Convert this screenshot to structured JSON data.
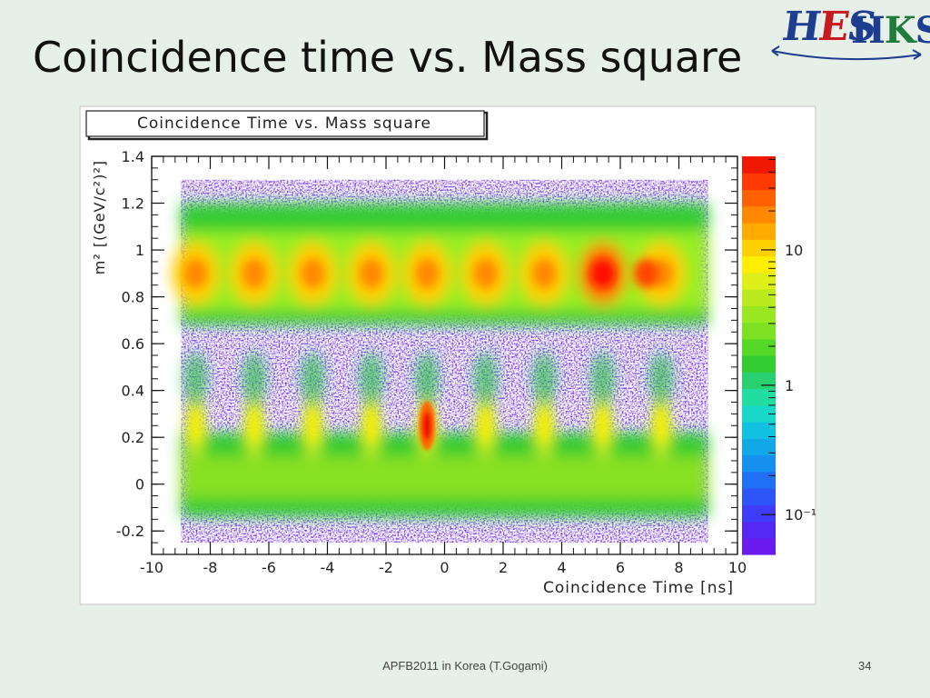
{
  "slide": {
    "title": "Coincidence time vs. Mass square",
    "footer": "APFB2011 in Korea (T.Gogami)",
    "page_number": "34"
  },
  "logo": {
    "left": "HES",
    "right": "HKS"
  },
  "colors": {
    "background": "#e7efe9",
    "logo_blue": "#1d3d8f",
    "logo_red": "#c8191e",
    "logo_green": "#1e7d3a"
  },
  "chart_data": {
    "type": "heatmap",
    "title": "Coincidence Time vs. Mass square",
    "xlabel": "Coincidence Time [ns]",
    "ylabel": "m² [(GeV/c²)²]",
    "xlim": [
      -10,
      10
    ],
    "ylim": [
      -0.3,
      1.4
    ],
    "data_x_range": [
      -9,
      9
    ],
    "data_y_range": [
      -0.25,
      1.3
    ],
    "x_ticks": [
      "-10",
      "-8",
      "-6",
      "-4",
      "-2",
      "0",
      "2",
      "4",
      "6",
      "8",
      "10"
    ],
    "y_ticks": [
      "-0.2",
      "0",
      "0.2",
      "0.4",
      "0.6",
      "0.8",
      "1",
      "1.2",
      "1.4"
    ],
    "color_scale": "log",
    "z_ticks": [
      "10⁻¹",
      "1",
      "10"
    ],
    "band_peaks": {
      "kaon_m2": 0.25,
      "proton_m2": 0.9,
      "accidental_times_ns": [
        -8.5,
        -6.5,
        -4.5,
        -2.5,
        -0.6,
        1.4,
        3.4,
        5.4,
        7.4
      ],
      "coincidence_peak_time_ns": -0.6,
      "strongest_proton_time_ns": 5.5
    },
    "legend_position": "right",
    "grid": false
  }
}
